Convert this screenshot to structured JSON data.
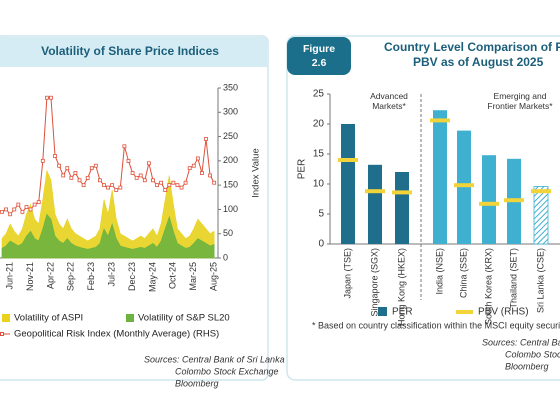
{
  "chart_data": [
    {
      "type": "combo",
      "title": "Volatility of Share Price Indices",
      "y_label": "Index Value",
      "categories": [
        null,
        null,
        "Jun-21",
        null,
        null,
        null,
        null,
        "Nov-21",
        null,
        null,
        null,
        null,
        "Apr-22",
        null,
        null,
        null,
        null,
        "Sep-22",
        null,
        null,
        null,
        null,
        "Feb-23",
        null,
        null,
        null,
        null,
        "Jul-23",
        null,
        null,
        null,
        null,
        "Dec-23",
        null,
        null,
        null,
        null,
        "May-24",
        null,
        null,
        null,
        null,
        "Oct-24",
        null,
        null,
        null,
        null,
        "Mar-25",
        null,
        null,
        null,
        null,
        "Aug-25"
      ],
      "series": [
        {
          "name": "Volatility of ASPI",
          "kind": "area",
          "color": "#e8d21c",
          "values": [
            40,
            50,
            70,
            55,
            45,
            60,
            90,
            110,
            80,
            70,
            120,
            180,
            160,
            90,
            70,
            60,
            80,
            60,
            50,
            45,
            40,
            35,
            40,
            45,
            60,
            120,
            90,
            140,
            80,
            50,
            45,
            40,
            35,
            40,
            45,
            40,
            50,
            60,
            45,
            70,
            120,
            170,
            110,
            60,
            50,
            40,
            45,
            60,
            80,
            70,
            60,
            50,
            55
          ]
        },
        {
          "name": "Volatility of S&P SL20",
          "kind": "area",
          "color": "#6cb33f",
          "values": [
            20,
            25,
            35,
            30,
            25,
            30,
            45,
            55,
            40,
            35,
            60,
            90,
            80,
            45,
            35,
            30,
            40,
            30,
            25,
            22,
            20,
            18,
            20,
            22,
            30,
            60,
            45,
            70,
            40,
            25,
            22,
            20,
            18,
            20,
            22,
            20,
            25,
            30,
            22,
            35,
            60,
            85,
            55,
            30,
            25,
            20,
            22,
            30,
            40,
            35,
            30,
            25,
            28
          ]
        },
        {
          "name": "Geopolitical Risk Index (Monthly Average) (RHS)",
          "kind": "line",
          "color": "#e0503a",
          "values": [
            95,
            100,
            90,
            100,
            110,
            95,
            105,
            100,
            110,
            115,
            200,
            330,
            330,
            210,
            190,
            170,
            185,
            165,
            175,
            160,
            150,
            165,
            185,
            190,
            160,
            150,
            145,
            150,
            140,
            145,
            230,
            200,
            175,
            165,
            170,
            160,
            195,
            160,
            150,
            155,
            140,
            150,
            155,
            150,
            145,
            155,
            185,
            190,
            205,
            175,
            245,
            170,
            155
          ]
        }
      ],
      "ylim": [
        0,
        350
      ],
      "yticks": [
        0,
        50,
        100,
        150,
        200,
        250,
        300,
        350
      ],
      "sources": [
        "Sources: Central Bank of Sri Lanka",
        "Colombo Stock Exchange",
        "Bloomberg"
      ]
    },
    {
      "type": "bar",
      "figure_label": "Figure",
      "figure_number": "2.6",
      "title": [
        "Country Level Comparison of PER and",
        "PBV as of August 2025"
      ],
      "y_label": "PER",
      "categories": [
        "Japan (TSE)",
        "Singapore (SGX)",
        "Hong Kong (HKEX)",
        "India (NSE)",
        "China (SSE)",
        "South Korea (KRX)",
        "Thailand (SET)",
        "Sri Lanka (CSE)"
      ],
      "bar_colors": [
        "#1f6e8c",
        "#1f6e8c",
        "#1f6e8c",
        "#3fb0d0",
        "#3fb0d0",
        "#3fb0d0",
        "#3fb0d0",
        "#3fb0d0"
      ],
      "hatched": [
        false,
        false,
        false,
        false,
        false,
        false,
        false,
        true
      ],
      "series": [
        {
          "name": "PER",
          "kind": "bar",
          "color": "#1f6e8c",
          "values": [
            20,
            13.2,
            12,
            22.3,
            18.9,
            14.8,
            14.2,
            9.6
          ]
        },
        {
          "name": "PBV (RHS)",
          "kind": "marker",
          "color": "#f2d43a",
          "values": [
            14,
            8.8,
            8.6,
            20.6,
            9.8,
            6.7,
            7.3,
            8.8
          ]
        }
      ],
      "ylim": [
        0,
        25
      ],
      "yticks": [
        0,
        5,
        10,
        15,
        20,
        25
      ],
      "annotations": [
        "Advanced Markets*",
        "Emerging and Frontier Markets*"
      ],
      "footnote": "* Based on country classification within the MSCI equity securities",
      "sources": [
        "Sources: Central Bank of Sri Lanka",
        "Colombo Stock Exchange",
        "Bloomberg"
      ]
    }
  ]
}
